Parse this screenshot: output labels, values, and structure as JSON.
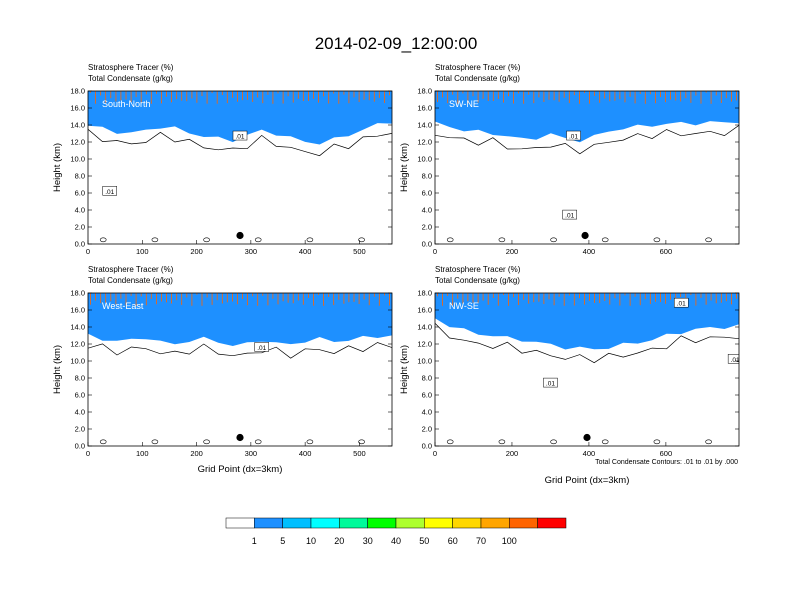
{
  "title": "2014-02-09_12:00:00",
  "contour_note": "Total Condensate Contours: .01 to .01 by .000",
  "colorbar": {
    "colors": [
      "#ffffff",
      "#1e90ff",
      "#00bfff",
      "#00ffff",
      "#00fa9a",
      "#00ff00",
      "#adff2f",
      "#ffff00",
      "#ffd700",
      "#ffa500",
      "#ff6400",
      "#ff0000"
    ],
    "labels": [
      "1",
      "5",
      "10",
      "20",
      "30",
      "40",
      "50",
      "60",
      "70",
      "100"
    ]
  },
  "chart_data": [
    {
      "type": "heatmap",
      "line1": "Stratosphere Tracer   (%)",
      "line2": "Total Condensate   (g/kg)",
      "region": "South-North",
      "ylabel": "Height (km)",
      "xlabel": "",
      "xlim": [
        0,
        560
      ],
      "ylim": [
        0,
        18
      ],
      "xticks": [
        0,
        100,
        200,
        300,
        400,
        500
      ],
      "yticks": [
        "0.0",
        "2.0",
        "4.0",
        "6.0",
        "8.0",
        "10.0",
        "12.0",
        "14.0",
        "16.0",
        "18.0"
      ],
      "tropopause_km": [
        13.9,
        13.6,
        13.2,
        13.0,
        13.4,
        13.8,
        13.6,
        13.1,
        12.7,
        12.4,
        12.2,
        12.8,
        13.3,
        13.0,
        12.5,
        12.0,
        11.9,
        12.3,
        12.8,
        13.5,
        14.0,
        14.4
      ],
      "contour_label": ".01",
      "contour_label_points": [
        {
          "x": 40,
          "y": 6.2
        },
        {
          "x": 280,
          "y": 12.7
        }
      ],
      "marker_point": {
        "x": 280,
        "y": 1.0
      }
    },
    {
      "type": "heatmap",
      "line1": "Stratosphere Tracer   (%)",
      "line2": "Total Condensate   (g/kg)",
      "region": "SW-NE",
      "ylabel": "Height (km)",
      "xlabel": "",
      "xlim": [
        0,
        790
      ],
      "ylim": [
        0,
        18
      ],
      "xticks": [
        0,
        200,
        400,
        600
      ],
      "yticks": [
        "0.0",
        "2.0",
        "4.0",
        "6.0",
        "8.0",
        "10.0",
        "12.0",
        "14.0",
        "16.0",
        "18.0"
      ],
      "tropopause_km": [
        14.2,
        13.8,
        13.4,
        13.2,
        13.0,
        12.7,
        12.3,
        12.5,
        12.9,
        12.4,
        12.2,
        12.6,
        13.3,
        13.6,
        13.8,
        14.0,
        14.1,
        14.2,
        14.2,
        14.3,
        14.3,
        14.4
      ],
      "contour_label": ".01",
      "contour_label_points": [
        {
          "x": 350,
          "y": 3.4
        },
        {
          "x": 360,
          "y": 12.7
        }
      ],
      "marker_point": {
        "x": 390,
        "y": 1.0
      }
    },
    {
      "type": "heatmap",
      "line1": "Stratosphere Tracer   (%)",
      "line2": "Total Condensate   (g/kg)",
      "region": "West-East",
      "ylabel": "Height (km)",
      "xlabel": "Grid Point (dx=3km)",
      "xlim": [
        0,
        560
      ],
      "ylim": [
        0,
        18
      ],
      "xticks": [
        0,
        100,
        200,
        300,
        400,
        500
      ],
      "yticks": [
        "0.0",
        "2.0",
        "4.0",
        "6.0",
        "8.0",
        "10.0",
        "12.0",
        "14.0",
        "16.0",
        "18.0"
      ],
      "tropopause_km": [
        13.0,
        12.6,
        12.3,
        12.5,
        12.8,
        12.2,
        12.0,
        12.4,
        12.6,
        12.3,
        11.8,
        12.0,
        12.5,
        12.1,
        11.9,
        12.4,
        12.6,
        12.3,
        12.5,
        12.7,
        12.9,
        13.0
      ],
      "contour_label": ".01",
      "contour_label_points": [
        {
          "x": 320,
          "y": 11.6
        }
      ],
      "marker_point": {
        "x": 280,
        "y": 1.0
      }
    },
    {
      "type": "heatmap",
      "line1": "Stratosphere Tracer   (%)",
      "line2": "Total Condensate   (g/kg)",
      "region": "NW-SE",
      "ylabel": "Height (km)",
      "xlabel": "Grid Point (dx=3km)",
      "xlim": [
        0,
        790
      ],
      "ylim": [
        0,
        18
      ],
      "xticks": [
        0,
        200,
        400,
        600
      ],
      "yticks": [
        "0.0",
        "2.0",
        "4.0",
        "6.0",
        "8.0",
        "10.0",
        "12.0",
        "14.0",
        "16.0",
        "18.0"
      ],
      "tropopause_km": [
        15.0,
        14.2,
        13.6,
        13.2,
        13.0,
        12.7,
        12.5,
        12.2,
        11.9,
        11.6,
        11.5,
        11.4,
        11.6,
        11.9,
        12.2,
        12.5,
        13.0,
        13.4,
        13.7,
        13.9,
        14.0,
        14.1
      ],
      "contour_label": ".01",
      "contour_label_points": [
        {
          "x": 300,
          "y": 7.4
        },
        {
          "x": 640,
          "y": 16.8
        },
        {
          "x": 780,
          "y": 10.2
        }
      ],
      "marker_point": {
        "x": 395,
        "y": 1.0
      }
    }
  ]
}
